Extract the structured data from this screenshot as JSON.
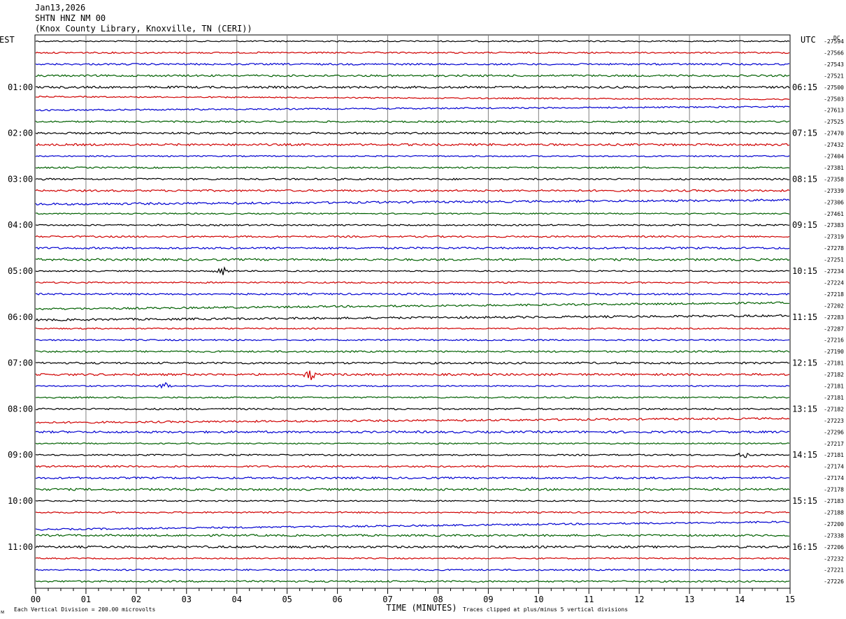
{
  "header": {
    "date": "Jan13,2026",
    "station": "SHTN HNZ NM 00",
    "location": "(Knox County Library, Knoxville, TN (CERI))"
  },
  "left_timezone": "EST",
  "right_timezone": "UTC",
  "dc_header": "DC",
  "x_axis_title": "TIME (MINUTES)",
  "scale_note": "Each Vertical Division =  200.00 microvolts",
  "clip_note": "Traces clipped at plus/minus 5 vertical divisions",
  "corner_mark": "ᴍ",
  "chart_data": {
    "type": "line",
    "xlabel": "TIME (MINUTES)",
    "xlim": [
      0,
      15
    ],
    "x_ticks": [
      "00",
      "01",
      "02",
      "03",
      "04",
      "05",
      "06",
      "07",
      "08",
      "09",
      "10",
      "11",
      "12",
      "13",
      "14",
      "15"
    ],
    "left_time_labels": [
      "01:00",
      "02:00",
      "03:00",
      "04:00",
      "05:00",
      "06:00",
      "07:00",
      "08:00",
      "09:00",
      "10:00",
      "11:00"
    ],
    "right_time_labels": [
      "06:15",
      "07:15",
      "08:15",
      "09:15",
      "10:15",
      "11:15",
      "12:15",
      "13:15",
      "14:15",
      "15:15",
      "16:15"
    ],
    "trace_colors": [
      "#000000",
      "#d00000",
      "#0000d0",
      "#006000"
    ],
    "dc_offsets": [
      "-27594",
      "-27566",
      "-27543",
      "-27521",
      "-27500",
      "-27503",
      "-27613",
      "-27525",
      "-27470",
      "-27432",
      "-27404",
      "-27381",
      "-27358",
      "-27339",
      "-27306",
      "-27461",
      "-27383",
      "-27319",
      "-27278",
      "-27251",
      "-27234",
      "-27224",
      "-27218",
      "-27202",
      "-27283",
      "-27287",
      "-27216",
      "-27190",
      "-27181",
      "-27182",
      "-27181",
      "-27181",
      "-27182",
      "-27223",
      "-27296",
      "-27217",
      "-27181",
      "-27174",
      "-27174",
      "-27178",
      "-27183",
      "-27188",
      "-27200",
      "-27338",
      "-27206",
      "-27232",
      "-27221",
      "-27226"
    ],
    "events": [
      {
        "trace": 20,
        "minute": 3.7,
        "amplitude": 6
      },
      {
        "trace": 29,
        "minute": 5.45,
        "amplitude": 8
      },
      {
        "trace": 30,
        "minute": 2.55,
        "amplitude": 7
      },
      {
        "trace": 36,
        "minute": 14.1,
        "amplitude": 5
      }
    ]
  }
}
